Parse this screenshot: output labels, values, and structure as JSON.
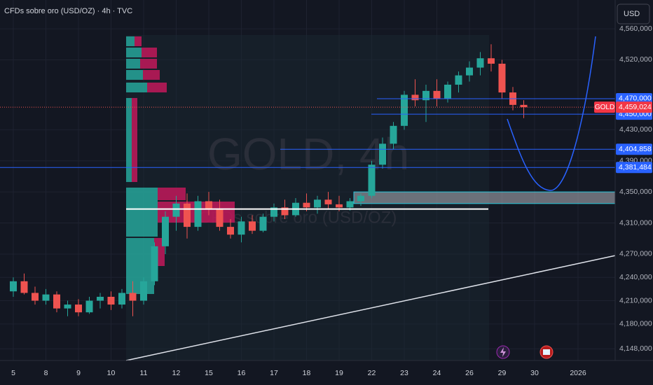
{
  "header": {
    "title": "CFDs sobre oro (USD/OZ) · 4h · TVC",
    "currency": "USD"
  },
  "chart_data": {
    "type": "candlestick",
    "watermark": "GOLD, 4h",
    "watermark_subtitle": "CFDs sobre oro (USD/OZ)",
    "categories": [
      "5",
      null,
      null,
      "8",
      null,
      null,
      "9",
      null,
      null,
      "10",
      null,
      null,
      "11",
      null,
      null,
      "12",
      null,
      null,
      "15",
      null,
      null,
      "16",
      null,
      null,
      "17",
      null,
      null,
      "18",
      null,
      null,
      "19",
      null,
      null,
      "22",
      null,
      null,
      "23",
      null,
      null,
      "24",
      null,
      null,
      "26",
      null,
      null,
      "29",
      null,
      null,
      "30",
      null,
      null,
      null,
      "2026",
      null,
      null
    ],
    "open": [
      4222,
      4235,
      4220,
      4210,
      4218,
      4200,
      4205,
      4195,
      4210,
      4215,
      4205,
      4220,
      4210,
      4235,
      4280,
      4318,
      4335,
      4305,
      4338,
      4328,
      4305,
      4295,
      4312,
      4300,
      4318,
      4330,
      4320,
      4336,
      4330,
      4340,
      4334,
      4330,
      4338,
      4345,
      4385,
      4412,
      4435,
      4475,
      4468,
      4480,
      4470,
      4488,
      4500,
      4510,
      4522,
      4515,
      4478,
      4462,
      null,
      null,
      null,
      null,
      null,
      null,
      null
    ],
    "high": [
      4240,
      4245,
      4228,
      4225,
      4222,
      4210,
      4212,
      4215,
      4220,
      4222,
      4225,
      4235,
      4240,
      4285,
      4325,
      4345,
      4348,
      4345,
      4350,
      4340,
      4315,
      4318,
      4320,
      4322,
      4335,
      4340,
      4342,
      4348,
      4345,
      4350,
      4345,
      4342,
      4348,
      4390,
      4420,
      4440,
      4480,
      4495,
      4488,
      4495,
      4492,
      4505,
      4518,
      4530,
      4540,
      4520,
      4485,
      4468,
      null,
      null,
      null,
      null,
      null,
      null,
      null
    ],
    "low": [
      4215,
      4218,
      4205,
      4205,
      4195,
      4190,
      4190,
      4193,
      4200,
      4198,
      4200,
      4190,
      4205,
      4230,
      4270,
      4300,
      4290,
      4300,
      4320,
      4300,
      4290,
      4285,
      4296,
      4298,
      4312,
      4315,
      4318,
      4325,
      4322,
      4328,
      4325,
      4326,
      4332,
      4342,
      4380,
      4405,
      4430,
      4460,
      4440,
      4460,
      4465,
      4478,
      4492,
      4500,
      4505,
      4470,
      4455,
      4445,
      null,
      null,
      null,
      null,
      null,
      null,
      null
    ],
    "close": [
      4235,
      4220,
      4210,
      4218,
      4200,
      4205,
      4195,
      4210,
      4215,
      4205,
      4220,
      4210,
      4235,
      4280,
      4318,
      4335,
      4305,
      4338,
      4328,
      4305,
      4295,
      4312,
      4300,
      4318,
      4330,
      4320,
      4336,
      4330,
      4340,
      4334,
      4330,
      4338,
      4345,
      4385,
      4412,
      4435,
      4475,
      4468,
      4480,
      4470,
      4488,
      4500,
      4510,
      4522,
      4515,
      4478,
      4462,
      4459.024,
      null,
      null,
      null,
      null,
      null,
      null,
      null
    ],
    "up_color": "#26a69a",
    "down_color": "#ef5350",
    "ylim": [
      4133,
      4597
    ],
    "yticks": [
      {
        "value": 4560,
        "label": "4,560,000"
      },
      {
        "value": 4520,
        "label": "4,520,000"
      },
      {
        "value": 4430,
        "label": "4,430,000"
      },
      {
        "value": 4390,
        "label": "4,390,000"
      },
      {
        "value": 4350,
        "label": "4,350,000"
      },
      {
        "value": 4310,
        "label": "4,310,000"
      },
      {
        "value": 4270,
        "label": "4,270,000"
      },
      {
        "value": 4240,
        "label": "4,240,000"
      },
      {
        "value": 4210,
        "label": "4,210,000"
      },
      {
        "value": 4180,
        "label": "4,180,000"
      },
      {
        "value": 4148,
        "label": "4,148,000"
      }
    ],
    "levels": [
      {
        "value": 4470,
        "label": "4,470,000"
      },
      {
        "value": 4450,
        "label": "4,450,000"
      },
      {
        "value": 4404.858,
        "label": "4,404,858"
      },
      {
        "value": 4381.484,
        "label": "4,381,484"
      }
    ],
    "last_price": {
      "value": 4459.024,
      "label": "4,459,024",
      "tag": "GOLD"
    },
    "zone": {
      "top": 4350,
      "bottom": 4335
    },
    "support": 4328,
    "trendline": [
      4133,
      4268
    ],
    "grid": true
  }
}
